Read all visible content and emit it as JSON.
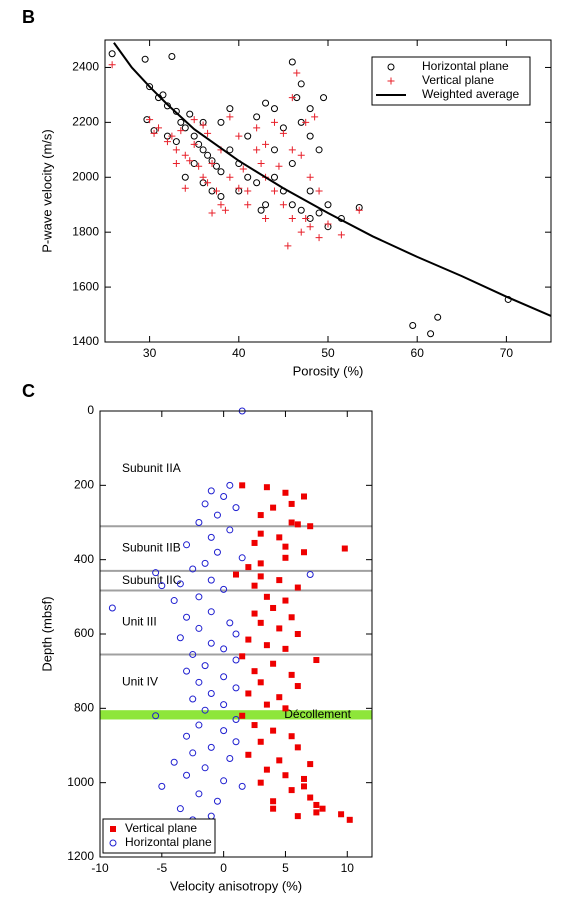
{
  "chart_data": [
    {
      "type": "scatter",
      "panel_label": "B",
      "xlabel": "Porosity (%)",
      "ylabel": "P-wave velocity (m/s)",
      "xlim": [
        25,
        75
      ],
      "ylim": [
        1400,
        2500
      ],
      "xticks": [
        30,
        40,
        50,
        60,
        70
      ],
      "yticks": [
        1400,
        1600,
        1800,
        2000,
        2200,
        2400
      ],
      "legend": "upper right",
      "series": [
        {
          "name": "Horizontal plane",
          "color": "#000000",
          "marker": "circle",
          "x": [
            25.8,
            29.5,
            32.5,
            30,
            31,
            29.7,
            30.5,
            31.5,
            32,
            33,
            33.5,
            34,
            34.5,
            35,
            35.5,
            36,
            36.5,
            37,
            37.5,
            38,
            34,
            35,
            36,
            37,
            38,
            39,
            40,
            41,
            42,
            43,
            44,
            45,
            46,
            47,
            48,
            49,
            50,
            51.5,
            53.5,
            46,
            47,
            46.5,
            48,
            49.5,
            44,
            43,
            42,
            41,
            39,
            38,
            45,
            47,
            48,
            49,
            50,
            48,
            46,
            44,
            59.5,
            61.5,
            62.3,
            70.2,
            40,
            42.5,
            36,
            33,
            32
          ],
          "values": [
            2450,
            2430,
            2440,
            2330,
            2290,
            2210,
            2170,
            2300,
            2260,
            2240,
            2200,
            2180,
            2230,
            2150,
            2120,
            2100,
            2080,
            2060,
            2040,
            2020,
            2000,
            2050,
            1980,
            1950,
            1930,
            2100,
            2050,
            2000,
            1980,
            1900,
            2100,
            1950,
            1900,
            1880,
            1850,
            1870,
            1820,
            1850,
            1890,
            2420,
            2340,
            2290,
            2250,
            2290,
            2250,
            2270,
            2220,
            2150,
            2250,
            2200,
            2180,
            2200,
            2150,
            2100,
            1900,
            1950,
            2050,
            2000,
            1460,
            1430,
            1490,
            1555,
            1950,
            1880,
            2200,
            2130,
            2150
          ]
        },
        {
          "name": "Vertical plane",
          "color": "#e8202a",
          "marker": "plus",
          "x": [
            25.8,
            30,
            30.5,
            31,
            32,
            32.5,
            33,
            33.5,
            34,
            34.5,
            35,
            35.5,
            36,
            36.5,
            37,
            37.5,
            38,
            38.5,
            39,
            40,
            41,
            42,
            42.5,
            43,
            44,
            45,
            46,
            47,
            48,
            49,
            50,
            51.5,
            53.5,
            45,
            44,
            46,
            47,
            48,
            46.5,
            46,
            47.5,
            48.5,
            43,
            40,
            39,
            35,
            36,
            38,
            41,
            43,
            34,
            37,
            45.5,
            47.5,
            49,
            36.5,
            33,
            40.5,
            42,
            44.5
          ],
          "values": [
            2410,
            2210,
            2160,
            2180,
            2130,
            2150,
            2100,
            2170,
            2080,
            2060,
            2120,
            2040,
            2000,
            1980,
            2050,
            1950,
            1900,
            1880,
            2000,
            1960,
            1950,
            2100,
            2050,
            2000,
            1950,
            1900,
            1850,
            1800,
            1820,
            1780,
            1830,
            1790,
            1880,
            2160,
            2200,
            2100,
            2080,
            2000,
            2380,
            2290,
            2200,
            2220,
            2120,
            2150,
            2220,
            2210,
            2190,
            2100,
            1900,
            1850,
            1960,
            1870,
            1750,
            1850,
            1950,
            2160,
            2050,
            2030,
            2180,
            2040
          ]
        },
        {
          "name": "Weighted average",
          "color": "#000000",
          "marker": "line",
          "x": [
            26,
            28,
            30,
            32,
            35,
            40,
            45,
            50,
            55,
            60,
            65,
            70,
            75
          ],
          "values": [
            2490,
            2400,
            2330,
            2265,
            2175,
            2060,
            1960,
            1870,
            1785,
            1710,
            1640,
            1565,
            1495
          ]
        }
      ]
    },
    {
      "type": "scatter",
      "panel_label": "C",
      "xlabel": "Velocity anisotropy (%)",
      "ylabel": "Depth (mbsf)",
      "xlim": [
        -10,
        12
      ],
      "ylim": [
        0,
        1200
      ],
      "y_inverted": true,
      "xticks": [
        -10,
        -5,
        0,
        5,
        10
      ],
      "yticks": [
        0,
        200,
        400,
        600,
        800,
        1000,
        1200
      ],
      "legend": "lower left",
      "unit_boundaries": [
        310,
        430,
        483,
        655
      ],
      "units": [
        "Subunit IIA",
        "Subunit IIB",
        "Subunit IIC",
        "Unit III",
        "Unit IV"
      ],
      "decollement": {
        "label": "Décollement",
        "depth": [
          805,
          830
        ],
        "color": "#8ee63a"
      },
      "series": [
        {
          "name": "Vertical plane",
          "color": "#ee0000",
          "marker": "square",
          "x": [
            1.5,
            3.5,
            5,
            6.5,
            5.5,
            4,
            3,
            5.5,
            6,
            7,
            3,
            4.5,
            2.5,
            5,
            9.8,
            6.5,
            5,
            3,
            2,
            1,
            3,
            4.5,
            2.5,
            6,
            3.5,
            5,
            4,
            2.5,
            5.5,
            3,
            4.5,
            6,
            2,
            3.5,
            5,
            1.5,
            7.5,
            4,
            2.5,
            5.5,
            3,
            6,
            2,
            4.5,
            3.5,
            5,
            1.5,
            2.5,
            4,
            5.5,
            3,
            6,
            2,
            4.5,
            7,
            3.5,
            5,
            6.5,
            3,
            5.5,
            7,
            4,
            7.5,
            8,
            6,
            9.5,
            10.2,
            7.5,
            6.5,
            4
          ],
          "values": [
            200,
            205,
            220,
            230,
            250,
            260,
            280,
            300,
            305,
            310,
            330,
            340,
            355,
            365,
            370,
            380,
            395,
            410,
            420,
            440,
            445,
            455,
            470,
            475,
            500,
            510,
            530,
            545,
            555,
            570,
            585,
            600,
            615,
            630,
            640,
            660,
            670,
            680,
            700,
            710,
            730,
            740,
            760,
            770,
            790,
            800,
            820,
            845,
            860,
            875,
            890,
            905,
            925,
            940,
            950,
            965,
            980,
            990,
            1000,
            1020,
            1040,
            1050,
            1060,
            1070,
            1090,
            1085,
            1100,
            1080,
            1010,
            1070
          ]
        },
        {
          "name": "Horizontal plane",
          "color": "#1f1fd0",
          "marker": "circle",
          "x": [
            1.5,
            0.5,
            -1,
            0,
            -1.5,
            1,
            -0.5,
            -2,
            0.5,
            -1,
            -3,
            -0.5,
            1.5,
            -1.5,
            -2.5,
            -5.5,
            -5,
            -1,
            -3.5,
            0,
            -2,
            -4,
            -9,
            -1,
            -3,
            0.5,
            -2,
            1,
            -3.5,
            -1,
            0,
            -2.5,
            1,
            -1.5,
            -3,
            0,
            -2,
            1,
            -1,
            -2.5,
            0,
            -1.5,
            -5.5,
            1,
            -2,
            0,
            -3,
            1,
            -1,
            -2.5,
            0.5,
            -4,
            -1.5,
            -3,
            0,
            -5,
            -2,
            -0.5,
            -3.5,
            -1,
            -2.5,
            1.5,
            7,
            -2
          ],
          "values": [
            0,
            200,
            215,
            230,
            250,
            260,
            280,
            300,
            320,
            340,
            360,
            380,
            395,
            410,
            425,
            435,
            470,
            455,
            465,
            480,
            500,
            510,
            530,
            540,
            555,
            570,
            585,
            600,
            610,
            625,
            640,
            655,
            670,
            685,
            700,
            715,
            730,
            745,
            760,
            775,
            790,
            805,
            820,
            830,
            845,
            860,
            875,
            890,
            905,
            920,
            935,
            945,
            960,
            980,
            995,
            1010,
            1030,
            1050,
            1070,
            1090,
            1100,
            1010,
            440,
            1110
          ]
        }
      ]
    }
  ]
}
